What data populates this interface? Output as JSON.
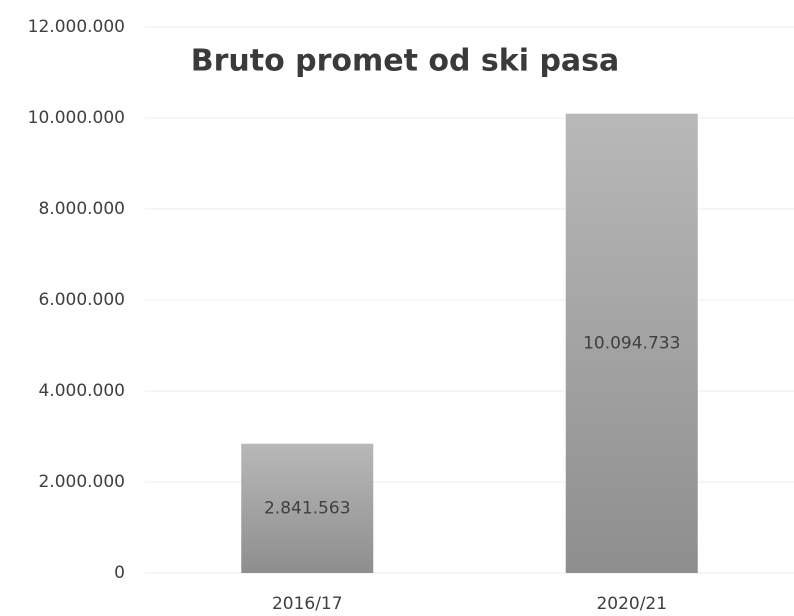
{
  "chart_data": {
    "type": "bar",
    "title": "Bruto promet od ski pasa",
    "categories": [
      "2016/17",
      "2020/21"
    ],
    "values": [
      2841563,
      10094733
    ],
    "value_labels": [
      "2.841.563",
      "10.094.733"
    ],
    "color": "#a6a6a6",
    "ylim": [
      0,
      12000000
    ],
    "yticks": [
      0,
      {
        "value": 2000000,
        "label": "2.000.000"
      },
      {
        "value": 4000000,
        "label": "4.000.000"
      },
      {
        "value": 6000000,
        "label": "6.000.000"
      },
      {
        "value": 8000000,
        "label": "8.000.000"
      },
      {
        "value": 10000000,
        "label": "10.000.000"
      },
      {
        "value": 12000000,
        "label": "12.000.000"
      }
    ],
    "grid": true
  }
}
